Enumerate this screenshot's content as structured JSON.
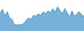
{
  "chart_data": {
    "type": "area",
    "values": [
      55,
      70,
      48,
      62,
      40,
      38,
      20,
      20,
      20,
      20,
      25,
      35,
      42,
      38,
      50,
      48,
      55,
      50,
      62,
      55,
      65,
      58,
      72,
      60,
      78,
      65,
      55,
      72,
      58,
      45,
      65,
      48,
      55,
      62,
      52,
      48
    ],
    "color": "#3d8fc7",
    "ylim": [
      0,
      100
    ],
    "tick_labels": false,
    "grid": false
  }
}
